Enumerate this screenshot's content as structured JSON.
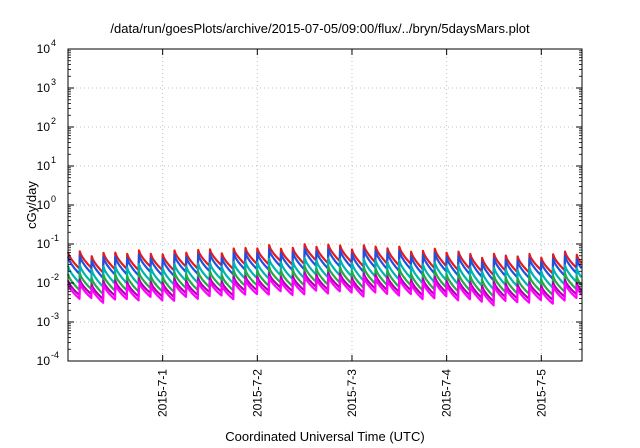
{
  "chart_data": {
    "type": "line",
    "title": "/data/run/goesPlots/archive/2015-07-05/09:00/flux/../bryn/5daysMars.plot",
    "xlabel": "Coordinated Universal Time (UTC)",
    "ylabel": "cGy/day",
    "yscale": "log",
    "ylim": [
      0.0001,
      10000
    ],
    "y_ticks": [
      {
        "base": "10",
        "exp": "-4",
        "value": 0.0001
      },
      {
        "base": "10",
        "exp": "-3",
        "value": 0.001
      },
      {
        "base": "10",
        "exp": "-2",
        "value": 0.01
      },
      {
        "base": "10",
        "exp": "-1",
        "value": 0.1
      },
      {
        "base": "10",
        "exp": "0",
        "value": 1
      },
      {
        "base": "10",
        "exp": "1",
        "value": 10
      },
      {
        "base": "10",
        "exp": "2",
        "value": 100
      },
      {
        "base": "10",
        "exp": "3",
        "value": 1000
      },
      {
        "base": "10",
        "exp": "4",
        "value": 10000
      }
    ],
    "xlim": [
      0,
      5.43
    ],
    "x_ticks": [
      {
        "label": "2015-7-1",
        "value": 1
      },
      {
        "label": "2015-7-2",
        "value": 2
      },
      {
        "label": "2015-7-3",
        "value": 3
      },
      {
        "label": "2015-7-4",
        "value": 4
      },
      {
        "label": "2015-7-5",
        "value": 5
      }
    ],
    "grid": true,
    "sawtooth_period_days": 0.125,
    "series": [
      {
        "color": "#e41a1c",
        "peak": 0.058,
        "trough": 0.022
      },
      {
        "color": "#2050e0",
        "peak": 0.045,
        "trough": 0.016
      },
      {
        "color": "#00b3b3",
        "peak": 0.026,
        "trough": 0.0095
      },
      {
        "color": "#22aa44",
        "peak": 0.016,
        "trough": 0.0062
      },
      {
        "color": "#b000b0",
        "peak": 0.011,
        "trough": 0.0046
      },
      {
        "color": "#ff00ff",
        "peak": 0.009,
        "trough": 0.0037
      }
    ]
  }
}
